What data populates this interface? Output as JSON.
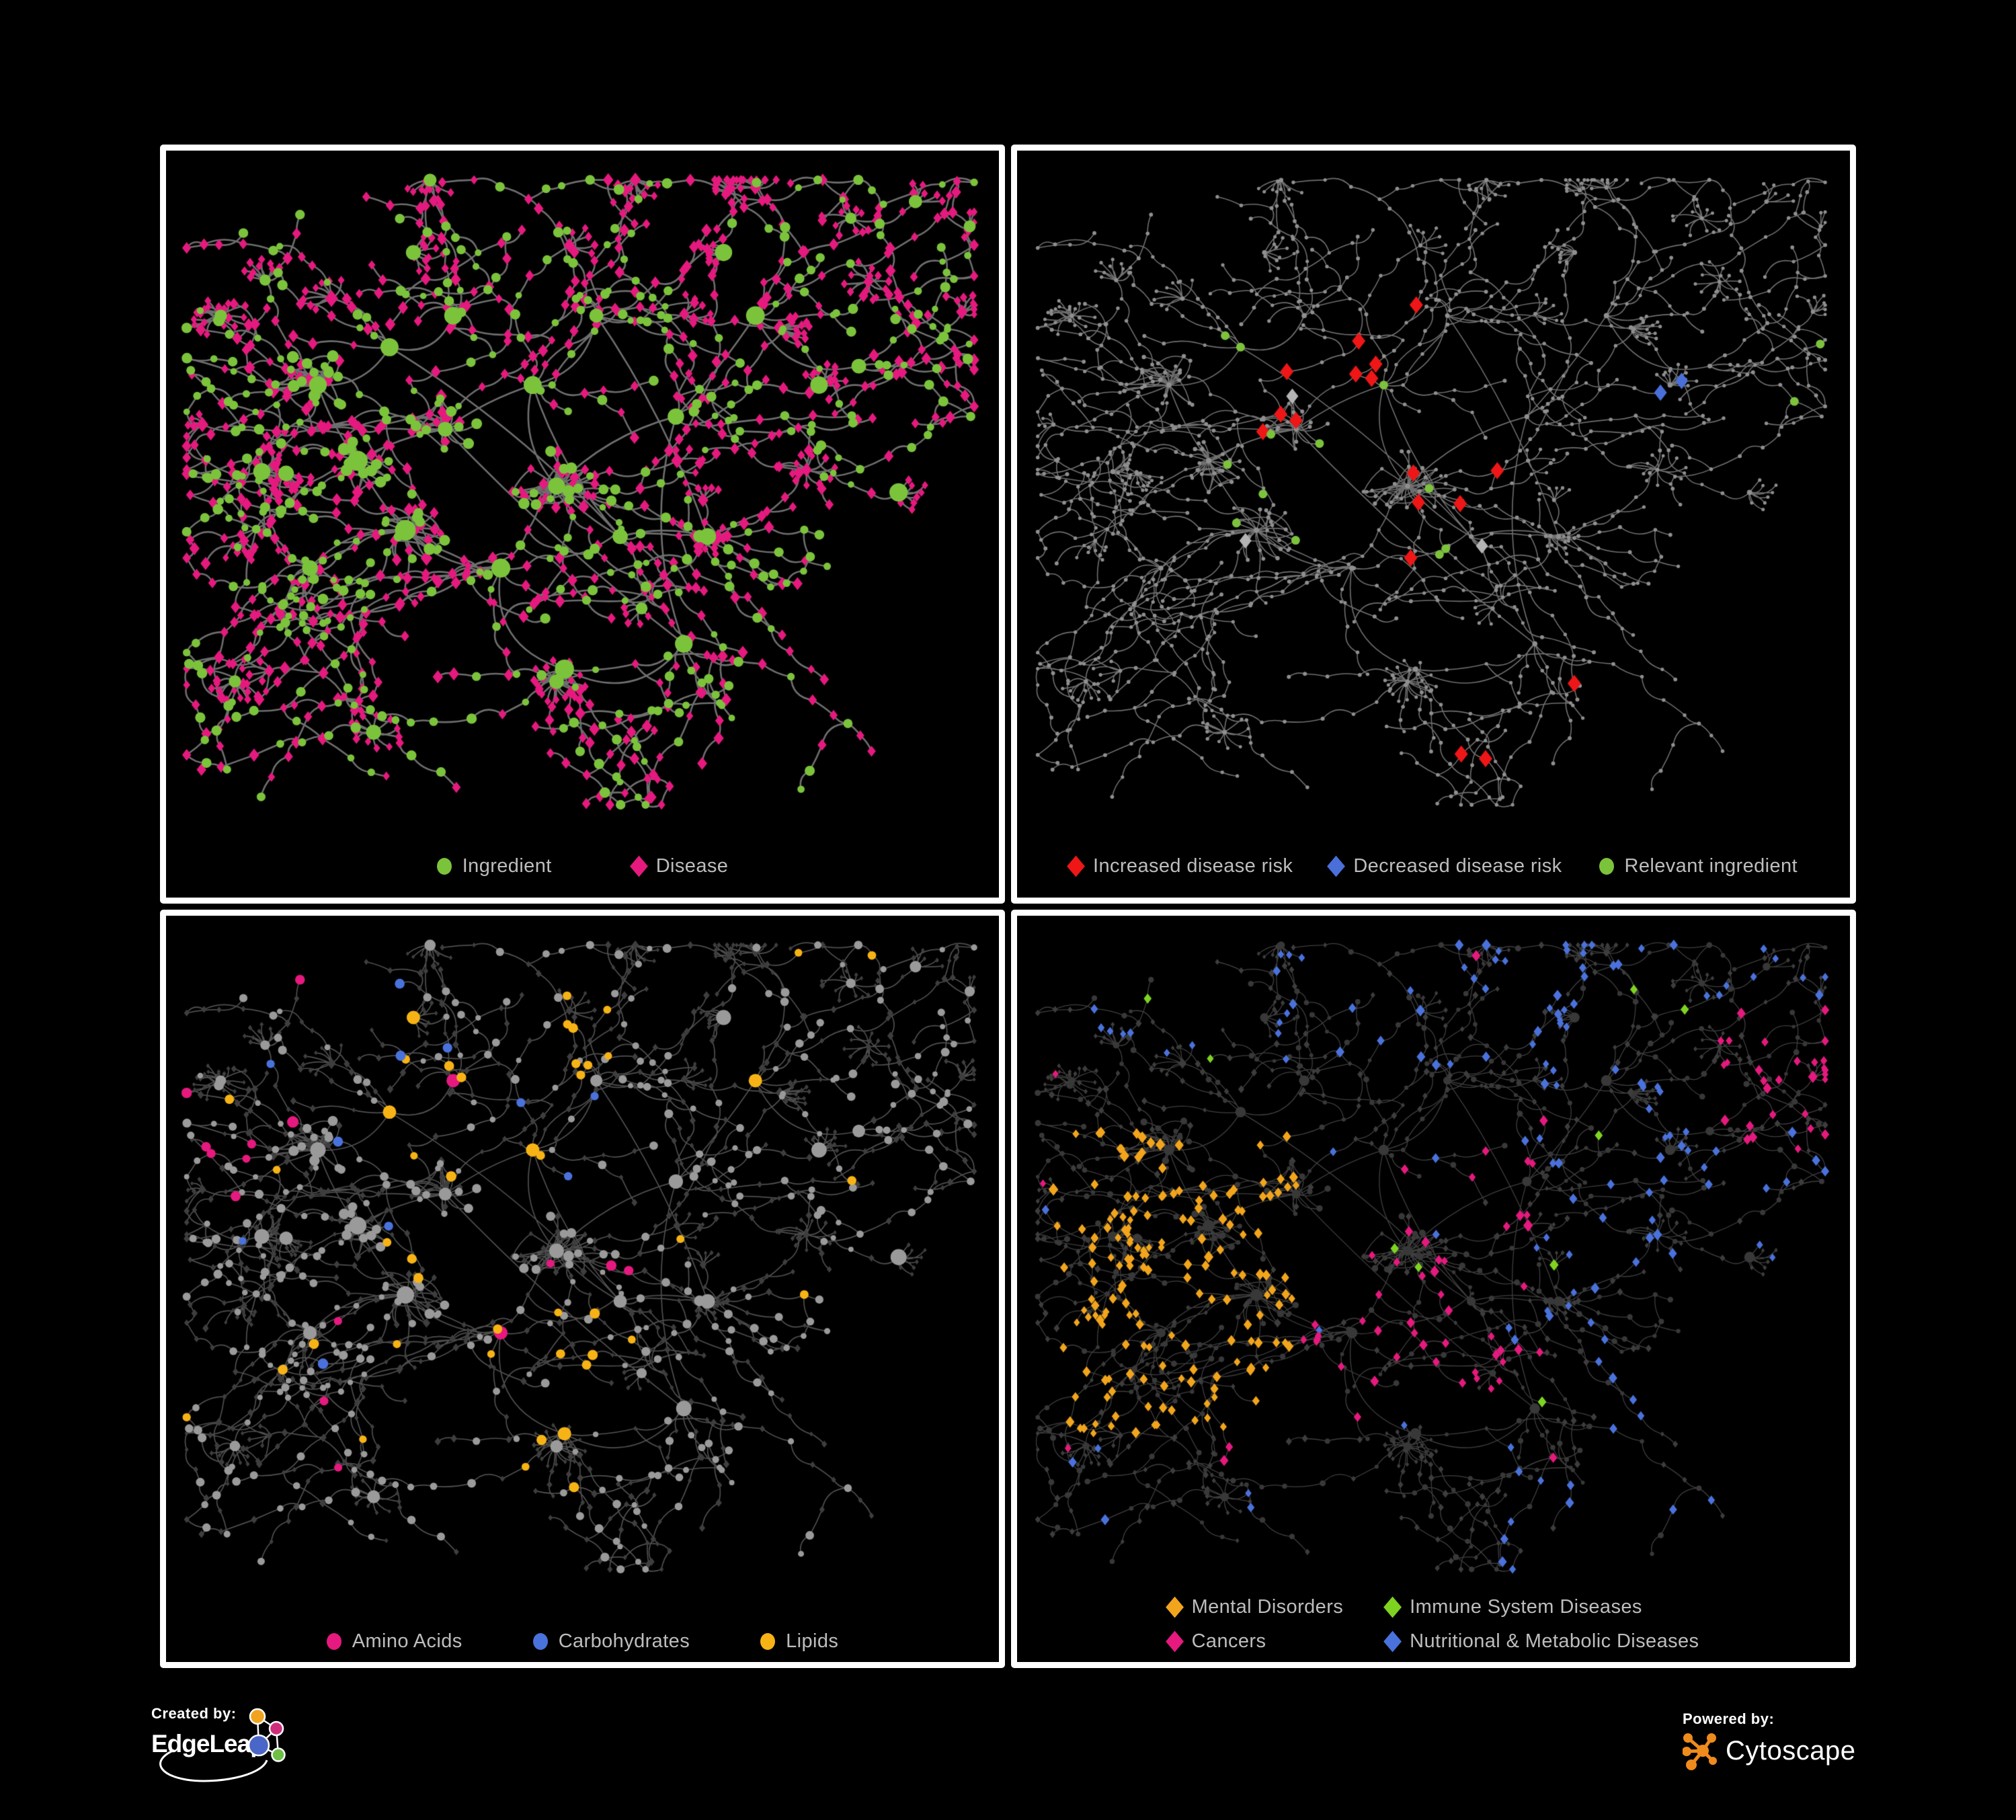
{
  "figure": {
    "background": "#000000",
    "panel_border": "#ffffff",
    "legend_text_color": "#bdbdbd"
  },
  "panels": [
    {
      "name": "ingredient-disease-network",
      "legend": [
        {
          "label": "Ingredient",
          "shape": "circle",
          "color": "#7cc33c"
        },
        {
          "label": "Disease",
          "shape": "diamond",
          "color": "#e5197e"
        }
      ]
    },
    {
      "name": "disease-risk-network",
      "legend": [
        {
          "label": "Increased disease risk",
          "shape": "diamond",
          "color": "#ee1616"
        },
        {
          "label": "Decreased disease risk",
          "shape": "diamond",
          "color": "#4a6fd9"
        },
        {
          "label": "Relevant ingredient",
          "shape": "circle",
          "color": "#7cc33c"
        }
      ]
    },
    {
      "name": "macronutrient-network",
      "legend": [
        {
          "label": "Amino Acids",
          "shape": "circle",
          "color": "#e5197e"
        },
        {
          "label": "Carbohydrates",
          "shape": "circle",
          "color": "#4a72dc"
        },
        {
          "label": "Lipids",
          "shape": "circle",
          "color": "#f7b315"
        }
      ]
    },
    {
      "name": "disease-category-network",
      "legend": [
        {
          "label": "Mental Disorders",
          "shape": "diamond",
          "color": "#f2a51c"
        },
        {
          "label": "Cancers",
          "shape": "diamond",
          "color": "#e5197e"
        },
        {
          "label": "Immune System Diseases",
          "shape": "diamond",
          "color": "#7ed321"
        },
        {
          "label": "Nutritional & Metabolic Diseases",
          "shape": "diamond",
          "color": "#4a72dc"
        }
      ]
    }
  ],
  "footer": {
    "created_by_label": "Created by:",
    "created_by_name": "EdgeLeap",
    "powered_by_label": "Powered by:",
    "powered_by_name": "Cytoscape",
    "cytoscape_orange": "#ef8b1d",
    "edgeleap_colors": {
      "orange": "#f0a31f",
      "magenta": "#cf2d7c",
      "blue": "#4a66c8",
      "green": "#6dbf45"
    }
  },
  "network": {
    "seed": 20417,
    "hubs": [
      [
        0.17,
        0.33
      ],
      [
        0.26,
        0.27
      ],
      [
        0.22,
        0.45
      ],
      [
        0.34,
        0.22
      ],
      [
        0.33,
        0.4
      ],
      [
        0.28,
        0.56
      ],
      [
        0.16,
        0.62
      ],
      [
        0.44,
        0.33
      ],
      [
        0.47,
        0.49
      ],
      [
        0.4,
        0.62
      ],
      [
        0.55,
        0.57
      ],
      [
        0.52,
        0.22
      ],
      [
        0.62,
        0.38
      ],
      [
        0.66,
        0.57
      ],
      [
        0.48,
        0.78
      ],
      [
        0.72,
        0.22
      ],
      [
        0.85,
        0.3
      ],
      [
        0.63,
        0.74
      ]
    ],
    "clusterHubs": [
      0,
      2,
      4,
      5,
      8
    ],
    "forcedFans": [
      [
        0.47,
        0.8,
        20
      ],
      [
        0.24,
        0.88,
        12
      ],
      [
        0.29,
        0.12,
        9
      ],
      [
        0.8,
        0.33,
        10
      ],
      [
        0.9,
        0.5,
        8
      ],
      [
        0.68,
        0.12,
        9
      ],
      [
        0.13,
        0.47,
        9
      ]
    ],
    "randomFans": 30,
    "styles": {
      "p1": {
        "edge": "#6e6e6e",
        "edgeW": 2.6,
        "ingredient": "#7cc33c",
        "disease": "#e5197e"
      },
      "p2": {
        "edge": "#6f6f6f",
        "edgeW": 1.6,
        "dim": "#8f8f8f",
        "red": "#ee1616",
        "blue": "#4a6fd9",
        "gray": "#b4b4b4",
        "green": "#7cc33c"
      },
      "p3": {
        "edge": "rgba(158,158,158,0.5)",
        "edgeW": 1.7,
        "gray": "#9a9a9a",
        "dim": "#3e3e3e",
        "yellow": "#f7b315",
        "blue": "#4a72dc",
        "pink": "#e5197e"
      },
      "p4": {
        "edge": "rgba(150,150,150,0.42)",
        "edgeW": 1.3,
        "dim": "#3d3d3d",
        "node": "#383838",
        "orange": "#f2a51c",
        "magenta": "#e5197e",
        "blue": "#4a72dc",
        "green": "#7ed321"
      }
    }
  }
}
